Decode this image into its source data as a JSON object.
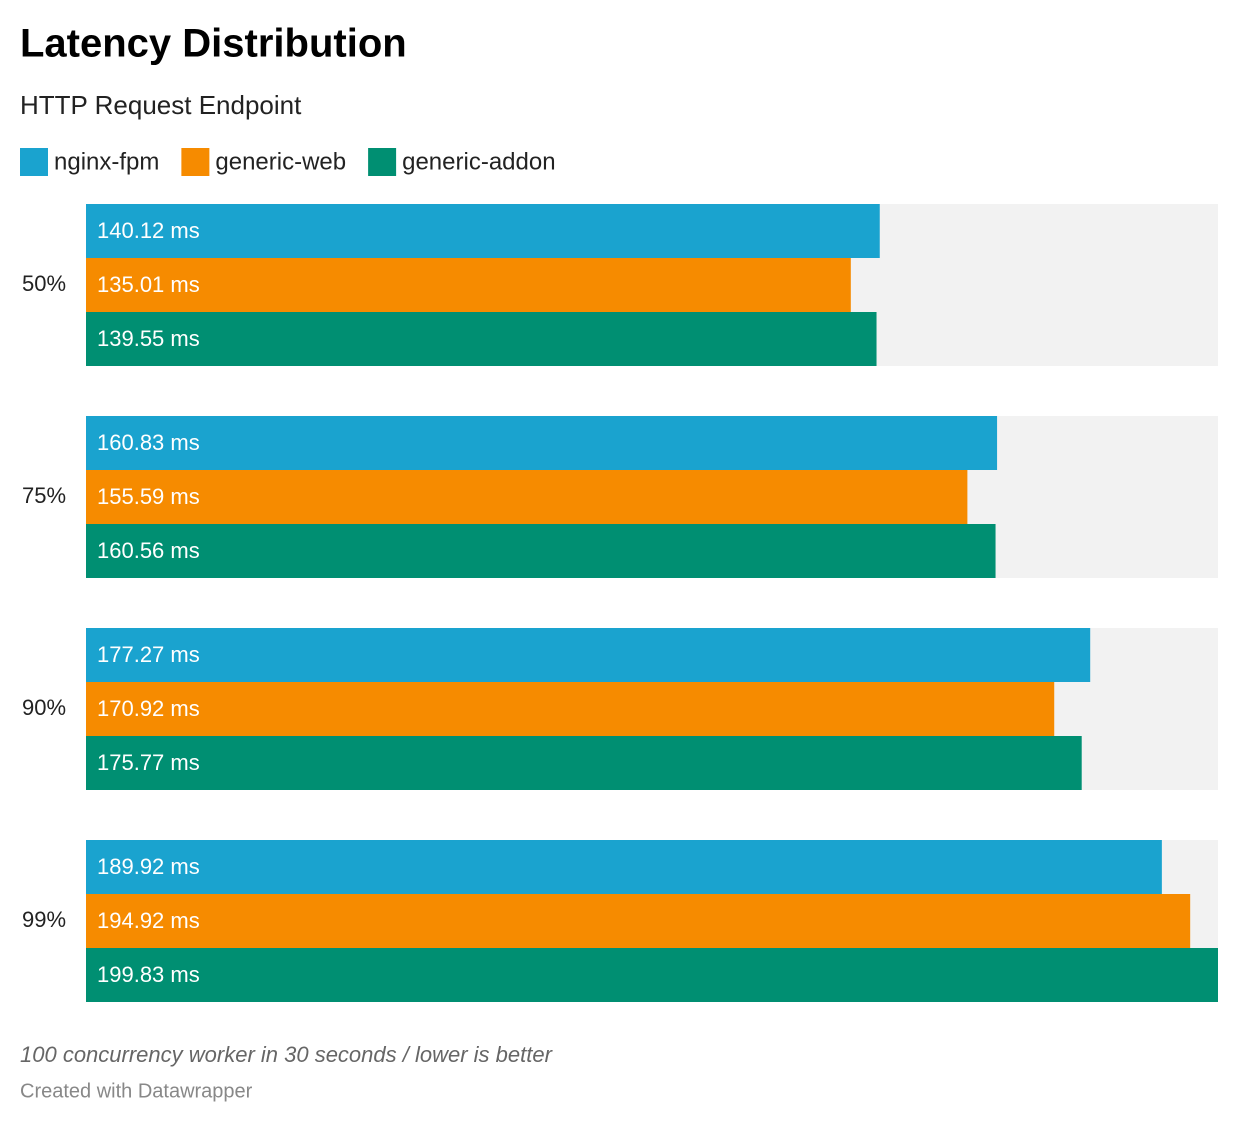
{
  "chart_data": {
    "type": "bar",
    "orientation": "horizontal",
    "title": "Latency Distribution",
    "subtitle": "HTTP Request Endpoint",
    "categories": [
      "50%",
      "75%",
      "90%",
      "99%"
    ],
    "series": [
      {
        "name": "nginx-fpm",
        "color": "#1aa3cf",
        "values": [
          140.12,
          160.83,
          177.27,
          189.92
        ],
        "value_labels": [
          "140.12 ms",
          "160.83 ms",
          "177.27 ms",
          "189.92 ms"
        ]
      },
      {
        "name": "generic-web",
        "color": "#f68b00",
        "values": [
          135.01,
          155.59,
          170.92,
          194.92
        ],
        "value_labels": [
          "135.01 ms",
          "155.59 ms",
          "170.92 ms",
          "194.92 ms"
        ]
      },
      {
        "name": "generic-addon",
        "color": "#008f72",
        "values": [
          139.55,
          160.56,
          175.77,
          199.83
        ],
        "value_labels": [
          "139.55 ms",
          "160.56 ms",
          "175.77 ms",
          "199.83 ms"
        ]
      }
    ],
    "notes": "100 concurrency worker in 30 seconds / lower is better",
    "credit": "Created with Datawrapper"
  }
}
